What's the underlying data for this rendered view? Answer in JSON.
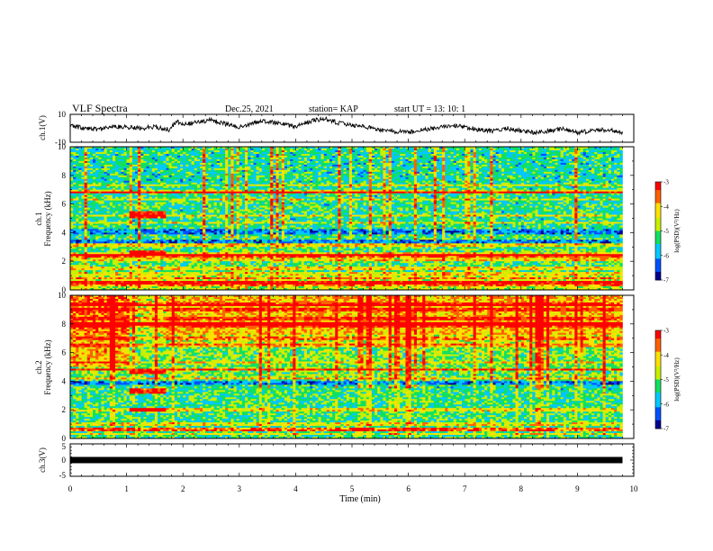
{
  "header": {
    "title": "VLF Spectra",
    "date": "Dec.25, 2021",
    "station": "station= KAP",
    "start_ut": "start  UT =   13: 10: 1"
  },
  "colors": {
    "trace": "#000000",
    "colormap": [
      "#00008f",
      "#0050ff",
      "#00c8ff",
      "#10e060",
      "#c8f000",
      "#ffe000",
      "#ff6000",
      "#ff0000",
      "#ffffff"
    ]
  },
  "chart_data": [
    {
      "id": "ch1-waveform",
      "type": "line",
      "ylabel": "ch.1(V)",
      "ylim": [
        -10,
        10
      ],
      "yticks": [
        "10",
        "-10"
      ],
      "x": [
        0,
        0.25,
        0.5,
        0.75,
        1.0,
        1.25,
        1.5,
        1.75,
        1.9,
        2.0,
        2.25,
        2.5,
        2.75,
        3.0,
        3.25,
        3.5,
        3.75,
        4.0,
        4.25,
        4.5,
        4.75,
        5.0,
        5.25,
        5.5,
        5.75,
        6.0,
        6.25,
        6.5,
        6.75,
        7.0,
        7.25,
        7.5,
        7.75,
        8.0,
        8.25,
        8.5,
        8.75,
        9.0,
        9.25,
        9.5,
        9.8
      ],
      "values": [
        2,
        0,
        -1,
        1,
        1,
        0,
        1,
        -1,
        5,
        3,
        4,
        6,
        3,
        1,
        4,
        5,
        3,
        1,
        5,
        7,
        4,
        2,
        1,
        -1,
        -2,
        -3,
        -1,
        0,
        2,
        1,
        -1,
        -2,
        0,
        -2,
        -3,
        -2,
        0,
        -3,
        -2,
        -1,
        -3
      ]
    },
    {
      "id": "ch1-spectrogram",
      "type": "heatmap",
      "ylabel": "ch.1\nFrequency (kHz)",
      "ylim": [
        0,
        10
      ],
      "yticks": [
        "0",
        "2",
        "4",
        "6",
        "8",
        "10"
      ],
      "colorbar": {
        "label": "log(PSD)(V²/Hz)",
        "range": [
          -7,
          -3
        ],
        "ticks": [
          "-3",
          "-4",
          "-5",
          "-6",
          "-7"
        ]
      },
      "bands_khz": [
        0.3,
        0.8,
        1.1,
        1.5,
        2.1,
        2.5,
        3.1,
        3.6,
        3.8,
        4.7,
        5.2,
        6.3,
        6.9,
        7.3
      ],
      "strong_bands_khz": [
        0.5,
        2.4,
        6.8
      ],
      "segment_min": [
        1.05,
        1.72
      ],
      "segment_bands_khz": [
        2.6,
        5.1,
        5.3
      ]
    },
    {
      "id": "ch2-spectrogram",
      "type": "heatmap",
      "ylabel": "ch.2\nFrequency (kHz)",
      "ylim": [
        0,
        10
      ],
      "yticks": [
        "0",
        "2",
        "4",
        "6",
        "8",
        "10"
      ],
      "colorbar": {
        "label": "log(PSD)(V²/Hz)",
        "range": [
          -7,
          -3
        ],
        "ticks": [
          "-3",
          "-4",
          "-5",
          "-6",
          "-7"
        ]
      },
      "bands_khz": [
        0.3,
        1.0,
        2.0,
        3.5,
        3.7,
        4.1,
        5.3,
        6.5,
        7.0,
        7.9,
        8.4,
        9.0,
        9.4
      ],
      "strong_bands_khz": [
        0.6,
        4.8,
        8.0,
        9.3
      ],
      "segment_min": [
        1.05,
        1.72
      ],
      "segment_bands_khz": [
        2.0,
        3.3,
        4.6
      ]
    },
    {
      "id": "ch3-waveform",
      "type": "line",
      "ylabel": "ch.3(V)",
      "ylim": [
        -5,
        5
      ],
      "yticks": [
        "5",
        "0",
        "-5"
      ],
      "x": [
        0,
        9.8
      ],
      "values": [
        0,
        0
      ]
    }
  ],
  "xaxis": {
    "label": "Time (min)",
    "range": [
      0,
      10
    ],
    "ticks": [
      "0",
      "1",
      "2",
      "3",
      "4",
      "5",
      "6",
      "7",
      "8",
      "9",
      "10"
    ]
  }
}
